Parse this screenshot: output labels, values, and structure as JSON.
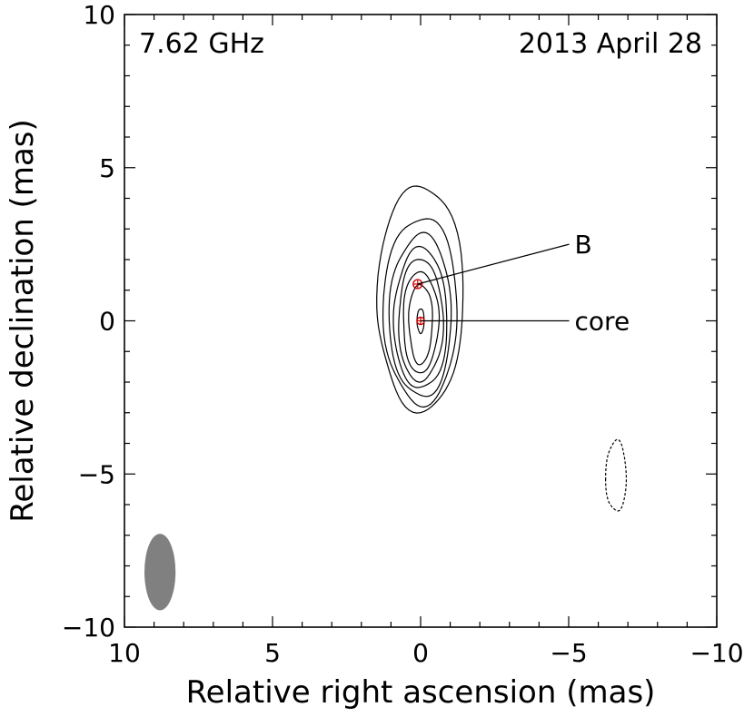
{
  "chart_data": {
    "type": "contour",
    "frequency_label": "7.62 GHz",
    "date_label": "2013 April 28",
    "xlabel": "Relative right ascension (mas)",
    "ylabel": "Relative declination (mas)",
    "xlim": [
      10,
      -10
    ],
    "ylim": [
      -10,
      10
    ],
    "x_major_ticks": [
      10,
      5,
      0,
      -5,
      -10
    ],
    "x_tick_labels": [
      "10",
      "5",
      "0",
      "−5",
      "−10"
    ],
    "y_major_ticks": [
      10,
      5,
      0,
      -5,
      -10
    ],
    "y_tick_labels": [
      "10",
      "5",
      "0",
      "−5",
      "−10"
    ],
    "minor_tick_step": 1,
    "contour_color": "#000000",
    "component_color": "#cc0000",
    "contours": [
      {
        "cx": 0.0,
        "cy": 0.4,
        "a": 1.45,
        "b_up": 4.1,
        "b_down": 3.3,
        "style": "solid"
      },
      {
        "cx": 0.0,
        "cy": 0.3,
        "a": 1.25,
        "b_up": 3.1,
        "b_down": 3.0,
        "style": "solid"
      },
      {
        "cx": 0.0,
        "cy": 0.2,
        "a": 1.05,
        "b_up": 2.6,
        "b_down": 2.7,
        "style": "solid"
      },
      {
        "cx": 0.0,
        "cy": 0.15,
        "a": 0.9,
        "b_up": 2.2,
        "b_down": 2.4,
        "style": "solid"
      },
      {
        "cx": 0.0,
        "cy": 0.1,
        "a": 0.75,
        "b_up": 1.9,
        "b_down": 2.1,
        "style": "solid"
      },
      {
        "cx": 0.0,
        "cy": 0.05,
        "a": 0.6,
        "b_up": 1.55,
        "b_down": 1.75,
        "style": "solid"
      },
      {
        "cx": 0.0,
        "cy": 0.0,
        "a": 0.4,
        "b_up": 1.2,
        "b_down": 1.4,
        "style": "solid"
      },
      {
        "cx": 0.0,
        "cy": 0.0,
        "a": 0.12,
        "b_up": 0.4,
        "b_down": 0.4,
        "style": "solid"
      },
      {
        "cx": -6.6,
        "cy": -5.2,
        "a": 0.35,
        "b_up": 1.3,
        "b_down": 1.0,
        "style": "dashed"
      }
    ],
    "components": [
      {
        "name": "B",
        "x": 0.1,
        "y": 1.2,
        "r": 0.15,
        "label_x": -5.2,
        "label_y": 2.5
      },
      {
        "name": "core",
        "x": 0.0,
        "y": 0.0,
        "r": 0.08,
        "label_x": -5.2,
        "label_y": 0.0
      }
    ],
    "beam": {
      "x": 8.8,
      "y": -8.2,
      "major": 2.5,
      "minor": 1.05,
      "pa_deg": 0,
      "color": "#808080"
    }
  }
}
